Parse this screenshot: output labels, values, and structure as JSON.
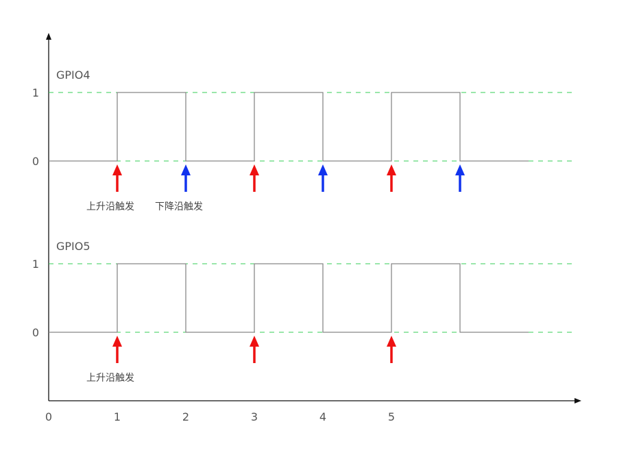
{
  "colors": {
    "axis": "#111111",
    "wave": "#888888",
    "dashed": "#33cc55",
    "rising_arrow": "#ee1111",
    "falling_arrow": "#1133ee"
  },
  "x_axis": {
    "ticks": [
      "0",
      "1",
      "2",
      "3",
      "4",
      "5"
    ]
  },
  "signals": [
    {
      "name": "GPIO4",
      "level_high_label": "1",
      "level_low_label": "0",
      "transitions": [
        1,
        2,
        3,
        4,
        5,
        6
      ],
      "end_x": 7,
      "arrows": [
        {
          "x": 1,
          "type": "rising"
        },
        {
          "x": 2,
          "type": "falling"
        },
        {
          "x": 3,
          "type": "rising"
        },
        {
          "x": 4,
          "type": "falling"
        },
        {
          "x": 5,
          "type": "rising"
        },
        {
          "x": 6,
          "type": "falling"
        }
      ],
      "notes": [
        {
          "x": 1,
          "text": "上升沿触发"
        },
        {
          "x": 2,
          "text": "下降沿触发"
        }
      ]
    },
    {
      "name": "GPIO5",
      "level_high_label": "1",
      "level_low_label": "0",
      "transitions": [
        1,
        2,
        3,
        4,
        5,
        6
      ],
      "end_x": 7,
      "arrows": [
        {
          "x": 1,
          "type": "rising"
        },
        {
          "x": 3,
          "type": "rising"
        },
        {
          "x": 5,
          "type": "rising"
        }
      ],
      "notes": [
        {
          "x": 1,
          "text": "上升沿触发"
        }
      ]
    }
  ]
}
